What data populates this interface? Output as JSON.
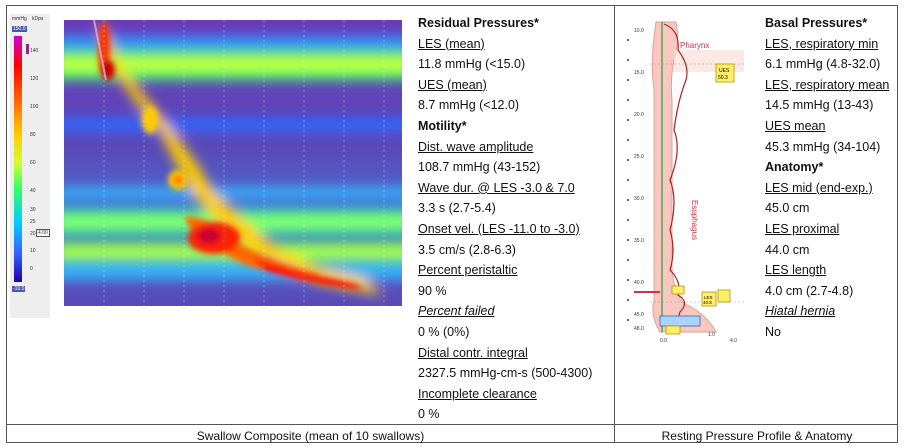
{
  "left_panel": {
    "colorbar": {
      "top_labels": [
        "mmHg",
        "kDps"
      ],
      "max_label": "150.0",
      "ticks": [
        "140",
        "120",
        "100",
        "80",
        "60",
        "40",
        "30",
        "25",
        "20",
        "10",
        "0"
      ],
      "min_label": "-10.0",
      "marker": "4.00"
    },
    "caption": "Swallow Composite (mean of 10 swallows)"
  },
  "middle_panel": {
    "residual_heading": "Residual Pressures*",
    "les_mean_label": "LES (mean)",
    "les_mean_value": "11.8 mmHg (<15.0)",
    "ues_mean_label": "UES (mean)",
    "ues_mean_value": "8.7 mmHg (<12.0)",
    "motility_heading": "Motility*",
    "dwa_label": "Dist. wave amplitude",
    "dwa_value": "108.7 mmHg (43-152)",
    "wave_dur_label": "Wave dur. @ LES -3.0 & 7.0",
    "wave_dur_value": "3.3 s (2.7-5.4)",
    "onset_label": "Onset vel. (LES -11.0 to -3.0)",
    "onset_value": "3.5 cm/s (2.8-6.3)",
    "pct_peri_label": "Percent peristaltic",
    "pct_peri_value": "90 %",
    "pct_failed_label": "Percent failed",
    "pct_failed_value": "0 % (0%)",
    "dci_label": "Distal contr. integral",
    "dci_value": "2327.5 mmHg-cm-s (500-4300)",
    "incomplete_label": "Incomplete clearance",
    "incomplete_value": "0 %"
  },
  "right_panel": {
    "caption": "Resting Pressure Profile & Anatomy",
    "anatomy_labels": {
      "pharynx": "Pharynx",
      "esophagus": "Esophagus",
      "ues_box": [
        "UES",
        "50.3"
      ],
      "les_box": [
        "LES",
        "40.8"
      ],
      "ticks": [
        "10.0",
        "15.0",
        "20.0",
        "25.0",
        "30.0",
        "35.0",
        "40.0",
        "45.0",
        "48.0"
      ],
      "bottom": [
        "0.0",
        "1.0",
        "4.0"
      ]
    },
    "basal_heading": "Basal Pressures*",
    "les_resp_min_label": "LES, respiratory min",
    "les_resp_min_value": "6.1 mmHg (4.8-32.0)",
    "les_resp_mean_label": "LES, respiratory mean",
    "les_resp_mean_value": "14.5 mmHg (13-43)",
    "ues_mean_label": "UES mean",
    "ues_mean_value": "45.3 mmHg (34-104)",
    "anatomy_heading": "Anatomy*",
    "les_mid_label": "LES mid (end-exp.)",
    "les_mid_value": "45.0 cm",
    "les_prox_label": "LES proximal",
    "les_prox_value": "44.0 cm",
    "les_len_label": "LES length",
    "les_len_value": "4.0 cm (2.7-4.8)",
    "hiatal_label": "Hiatal hernia",
    "hiatal_value": "No"
  }
}
